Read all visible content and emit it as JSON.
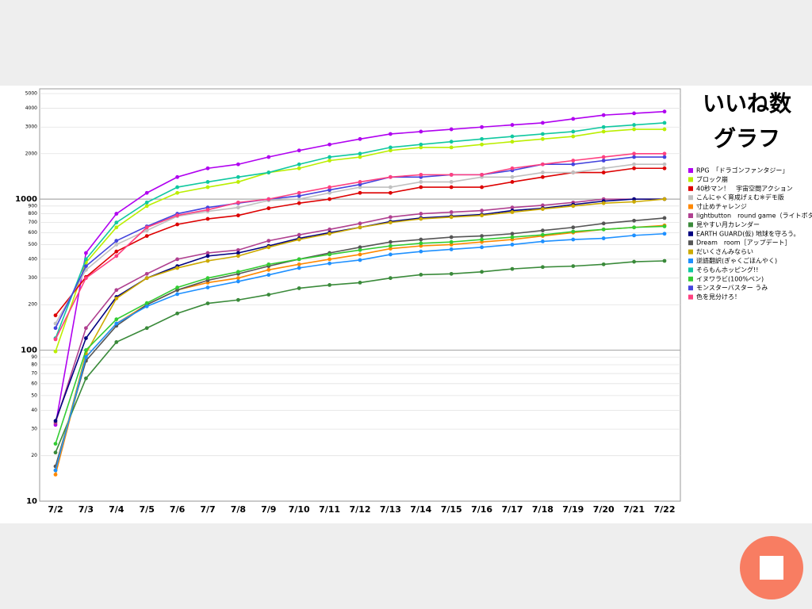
{
  "chart_data": {
    "type": "line",
    "title_lines": [
      "いいね数",
      "グラフ"
    ],
    "yscale": "log",
    "grid": true,
    "ylim": [
      10,
      5000
    ],
    "yticks": [
      10,
      20,
      30,
      40,
      50,
      60,
      70,
      80,
      90,
      100,
      200,
      300,
      400,
      500,
      600,
      700,
      800,
      900,
      1000,
      2000,
      3000,
      4000,
      5000
    ],
    "categories": [
      "7/2",
      "7/3",
      "7/4",
      "7/5",
      "7/6",
      "7/7",
      "7/8",
      "7/9",
      "7/10",
      "7/11",
      "7/12",
      "7/13",
      "7/14",
      "7/15",
      "7/16",
      "7/17",
      "7/18",
      "7/19",
      "7/20",
      "7/21",
      "7/22"
    ],
    "legend": "right",
    "series": [
      {
        "name": "RPG　「ドラゴンファンタジー」",
        "color": "#b000f0",
        "values": [
          32,
          440,
          800,
          1100,
          1400,
          1600,
          1700,
          1900,
          2100,
          2300,
          2500,
          2700,
          2800,
          2900,
          3000,
          3100,
          3200,
          3400,
          3600,
          3700,
          3800
        ]
      },
      {
        "name": "ブロック崩",
        "color": "#bbee00",
        "values": [
          98,
          380,
          650,
          900,
          1100,
          1200,
          1300,
          1500,
          1600,
          1800,
          1900,
          2100,
          2200,
          2200,
          2300,
          2400,
          2500,
          2600,
          2800,
          2900,
          2900
        ]
      },
      {
        "name": "40秒マン！　宇宙空間アクション",
        "color": "#dd0000",
        "values": [
          170,
          305,
          450,
          570,
          680,
          740,
          780,
          870,
          940,
          1000,
          1100,
          1100,
          1200,
          1200,
          1200,
          1300,
          1400,
          1500,
          1500,
          1600,
          1600
        ]
      },
      {
        "name": "こんにゃく育成げぇむ※デモ版",
        "color": "#c0c0c0",
        "values": [
          150,
          340,
          500,
          620,
          770,
          830,
          880,
          980,
          1000,
          1100,
          1200,
          1200,
          1300,
          1300,
          1400,
          1400,
          1500,
          1500,
          1600,
          1700,
          1700
        ]
      },
      {
        "name": "寸止めチャレンジ",
        "color": "#ff8800",
        "values": [
          15,
          90,
          150,
          200,
          250,
          280,
          300,
          340,
          370,
          400,
          430,
          470,
          490,
          500,
          520,
          540,
          570,
          600,
          630,
          650,
          670
        ]
      },
      {
        "name": "lightbutton　round game（ライトボタン",
        "color": "#b04090",
        "values": [
          33,
          140,
          250,
          320,
          400,
          440,
          460,
          530,
          580,
          630,
          690,
          760,
          800,
          820,
          840,
          880,
          910,
          950,
          1000,
          1000,
          1000
        ]
      },
      {
        "name": "見やすい月カレンダー",
        "color": "#3a8a3a",
        "values": [
          21,
          65,
          113,
          140,
          175,
          204,
          215,
          233,
          257,
          270,
          280,
          300,
          316,
          320,
          330,
          345,
          355,
          360,
          370,
          385,
          390
        ]
      },
      {
        "name": "EARTH GUARD(仮) 地球を守ろう。",
        "color": "#000080",
        "values": [
          34,
          120,
          225,
          300,
          360,
          420,
          440,
          490,
          550,
          600,
          650,
          710,
          750,
          770,
          790,
          840,
          870,
          920,
          970,
          1000,
          1000
        ]
      },
      {
        "name": "Dream　room［アップデート］",
        "color": "#555555",
        "values": [
          17,
          85,
          145,
          200,
          250,
          290,
          320,
          360,
          400,
          440,
          480,
          520,
          540,
          560,
          570,
          590,
          620,
          650,
          690,
          720,
          750
        ]
      },
      {
        "name": "だいくさんみならい",
        "color": "#ccaa00",
        "values": [
          16,
          95,
          220,
          300,
          350,
          390,
          420,
          480,
          540,
          590,
          650,
          700,
          740,
          760,
          780,
          820,
          860,
          900,
          940,
          960,
          1000
        ]
      },
      {
        "name": "逆語翻訳(ぎゃくごほんやく)",
        "color": "#1e90ff",
        "values": [
          16,
          90,
          150,
          195,
          235,
          260,
          285,
          315,
          350,
          375,
          395,
          430,
          450,
          465,
          480,
          500,
          525,
          540,
          550,
          575,
          590
        ]
      },
      {
        "name": "そらもんホッピング!!",
        "color": "#10c8a0",
        "values": [
          120,
          400,
          700,
          950,
          1200,
          1300,
          1400,
          1500,
          1700,
          1900,
          2000,
          2200,
          2300,
          2400,
          2500,
          2600,
          2700,
          2800,
          3000,
          3100,
          3200
        ]
      },
      {
        "name": "イヌワラビ(100%ペン)",
        "color": "#33cc33",
        "values": [
          24,
          100,
          160,
          205,
          260,
          300,
          330,
          370,
          400,
          430,
          460,
          490,
          510,
          520,
          540,
          560,
          580,
          610,
          630,
          650,
          660
        ]
      },
      {
        "name": "モンスターバスター うみ",
        "color": "#4444dd",
        "values": [
          140,
          360,
          530,
          660,
          800,
          880,
          940,
          1000,
          1050,
          1150,
          1250,
          1400,
          1400,
          1450,
          1450,
          1550,
          1700,
          1700,
          1800,
          1900,
          1900
        ]
      },
      {
        "name": "色を見分けろ！",
        "color": "#ff4080",
        "values": [
          118,
          300,
          420,
          650,
          780,
          850,
          950,
          1000,
          1100,
          1200,
          1300,
          1400,
          1450,
          1450,
          1450,
          1600,
          1700,
          1800,
          1900,
          2000,
          2000
        ]
      }
    ]
  }
}
